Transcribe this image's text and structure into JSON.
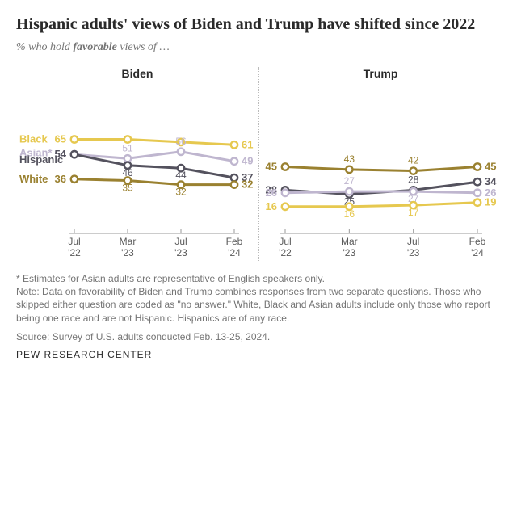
{
  "title": "Hispanic adults' views of Biden and Trump have shifted since 2022",
  "subtitle_pre": "% who hold ",
  "subtitle_bold": "favorable",
  "subtitle_post": " views of …",
  "x_labels": [
    "Jul\n'22",
    "Mar\n'23",
    "Jul\n'23",
    "Feb\n'24"
  ],
  "x_positions": [
    0,
    1,
    2,
    3
  ],
  "y_domain": [
    0,
    100
  ],
  "colors": {
    "black": "#e6c84f",
    "asian": "#bfb6cf",
    "hispanic": "#54525e",
    "white": "#9a8130",
    "axis": "#9a9a9a",
    "text": "#747474",
    "marker_fill": "#ffffff"
  },
  "line_width": 3,
  "marker_radius": 4.2,
  "panels": [
    {
      "title": "Biden",
      "series": [
        {
          "key": "black",
          "label": "Black",
          "color_key": "black",
          "values": [
            65,
            65,
            63,
            61
          ],
          "first_label": 65,
          "last_label": 61
        },
        {
          "key": "asian",
          "label": "Asian*",
          "color_key": "asian",
          "values": [
            54,
            51,
            56,
            49
          ],
          "first_label": 54,
          "last_label": 49,
          "mid_labels": [
            {
              "i": 1,
              "v": 51,
              "dy": -9
            },
            {
              "i": 2,
              "v": 56,
              "dy": -9
            }
          ]
        },
        {
          "key": "hispanic",
          "label": "Hispanic",
          "color_key": "hispanic",
          "values": [
            54,
            46,
            44,
            37
          ],
          "first_label": 54,
          "last_label": 37,
          "mid_labels": [
            {
              "i": 1,
              "v": 46,
              "dy": 13
            },
            {
              "i": 2,
              "v": 44,
              "dy": 13
            }
          ]
        },
        {
          "key": "white",
          "label": "White",
          "color_key": "white",
          "values": [
            36,
            35,
            32,
            32
          ],
          "first_label": 36,
          "last_label": 32,
          "mid_labels": [
            {
              "i": 1,
              "v": 35,
              "dy": 13
            },
            {
              "i": 2,
              "v": 32,
              "dy": 13
            }
          ]
        }
      ],
      "left_legend": [
        {
          "label": "Black",
          "color_key": "black",
          "y": 65
        },
        {
          "label": "Asian*",
          "color_key": "asian",
          "y": 55
        },
        {
          "label": "Hispanic",
          "color_key": "hispanic",
          "y": 50
        },
        {
          "label": "White",
          "color_key": "white",
          "y": 36
        }
      ]
    },
    {
      "title": "Trump",
      "series": [
        {
          "key": "white",
          "label": "White",
          "color_key": "white",
          "values": [
            45,
            43,
            42,
            45
          ],
          "first_label": 45,
          "last_label": 45,
          "mid_labels": [
            {
              "i": 1,
              "v": 43,
              "dy": -9
            },
            {
              "i": 2,
              "v": 42,
              "dy": -9
            }
          ]
        },
        {
          "key": "hispanic",
          "label": "Hispanic",
          "color_key": "hispanic",
          "values": [
            28,
            25,
            28,
            34
          ],
          "first_label": 28,
          "last_label": 34,
          "mid_labels": [
            {
              "i": 1,
              "v": 25,
              "dy": 13
            },
            {
              "i": 2,
              "v": 28,
              "dy": -9
            }
          ]
        },
        {
          "key": "asian",
          "label": "Asian*",
          "color_key": "asian",
          "values": [
            26,
            27,
            27,
            26
          ],
          "first_label": 26,
          "last_label": 26,
          "mid_labels": [
            {
              "i": 1,
              "v": 27,
              "dy": -9
            },
            {
              "i": 2,
              "v": 27,
              "dy": 13
            }
          ]
        },
        {
          "key": "black",
          "label": "Black",
          "color_key": "black",
          "values": [
            16,
            16,
            17,
            19
          ],
          "first_label": 16,
          "last_label": 19,
          "mid_labels": [
            {
              "i": 1,
              "v": 16,
              "dy": 13
            },
            {
              "i": 2,
              "v": 17,
              "dy": 13
            }
          ]
        }
      ]
    }
  ],
  "footnote_asterisk": "* Estimates for Asian adults are representative of English speakers only.",
  "footnote_note": "Note: Data on favorability of Biden and Trump combines responses from two separate questions. Those who skipped either question are coded as \"no answer.\" White, Black and Asian adults include only those who report being one race and are not Hispanic. Hispanics are of any race.",
  "source": "Source: Survey of U.S. adults conducted Feb. 13-25, 2024.",
  "brand": "PEW RESEARCH CENTER"
}
